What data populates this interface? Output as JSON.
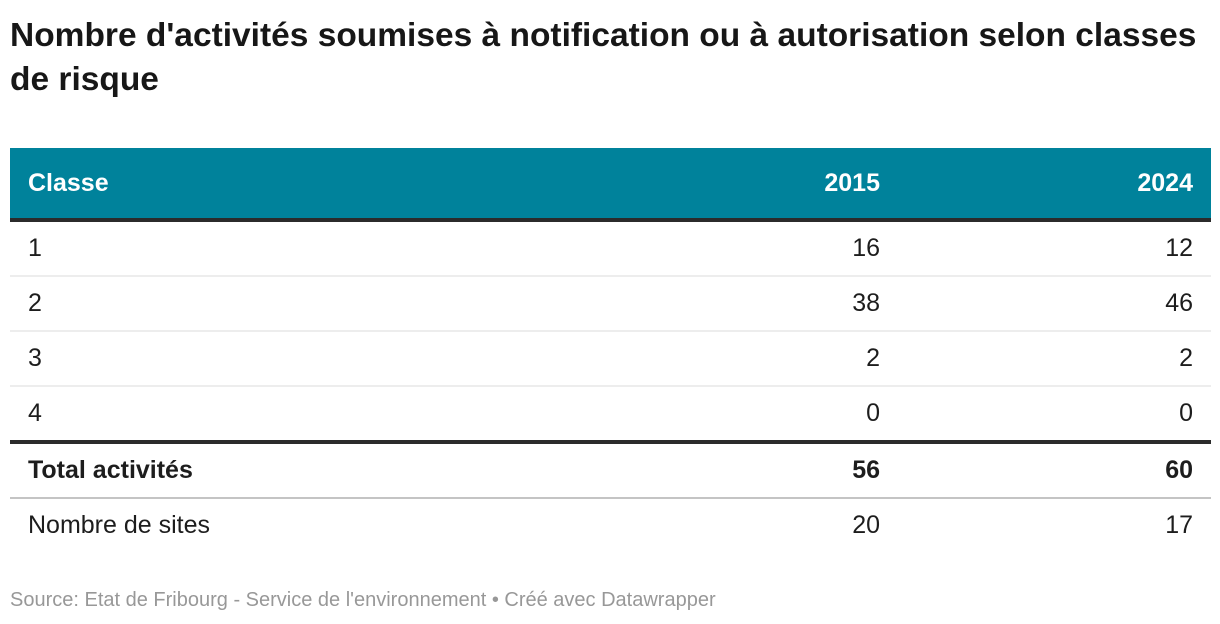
{
  "title": "Nombre d'activités soumises à notification ou à autorisation selon classes de risque",
  "table": {
    "columns": [
      "Classe",
      "2015",
      "2024"
    ],
    "rows": [
      {
        "label": "1",
        "y2015": "16",
        "y2024": "12"
      },
      {
        "label": "2",
        "y2015": "38",
        "y2024": "46"
      },
      {
        "label": "3",
        "y2015": "2",
        "y2024": "2"
      },
      {
        "label": "4",
        "y2015": "0",
        "y2024": "0"
      }
    ],
    "total": {
      "label": "Total activités",
      "y2015": "56",
      "y2024": "60"
    },
    "sites": {
      "label": "Nombre de sites",
      "y2015": "20",
      "y2024": "17"
    }
  },
  "footer": {
    "text": "Source: Etat de Fribourg - Service de l'environnement • Créé avec Datawrapper"
  },
  "colors": {
    "header_bg": "#00829B",
    "header_text": "#FFFFFF",
    "dark_border": "#2B2B2B",
    "light_border": "#EDEDED",
    "medium_border": "#C4C4C4",
    "body_text": "#1D1D1D",
    "title_text": "#171717",
    "footer_text": "#989898"
  },
  "chart_data": {
    "type": "table",
    "title": "Nombre d'activités soumises à notification ou à autorisation selon classes de risque",
    "columns": [
      "Classe",
      "2015",
      "2024"
    ],
    "rows": [
      [
        "1",
        16,
        12
      ],
      [
        "2",
        38,
        46
      ],
      [
        "3",
        2,
        2
      ],
      [
        "4",
        0,
        0
      ],
      [
        "Total activités",
        56,
        60
      ],
      [
        "Nombre de sites",
        20,
        17
      ]
    ],
    "source": "Etat de Fribourg - Service de l'environnement",
    "created_with": "Datawrapper"
  }
}
